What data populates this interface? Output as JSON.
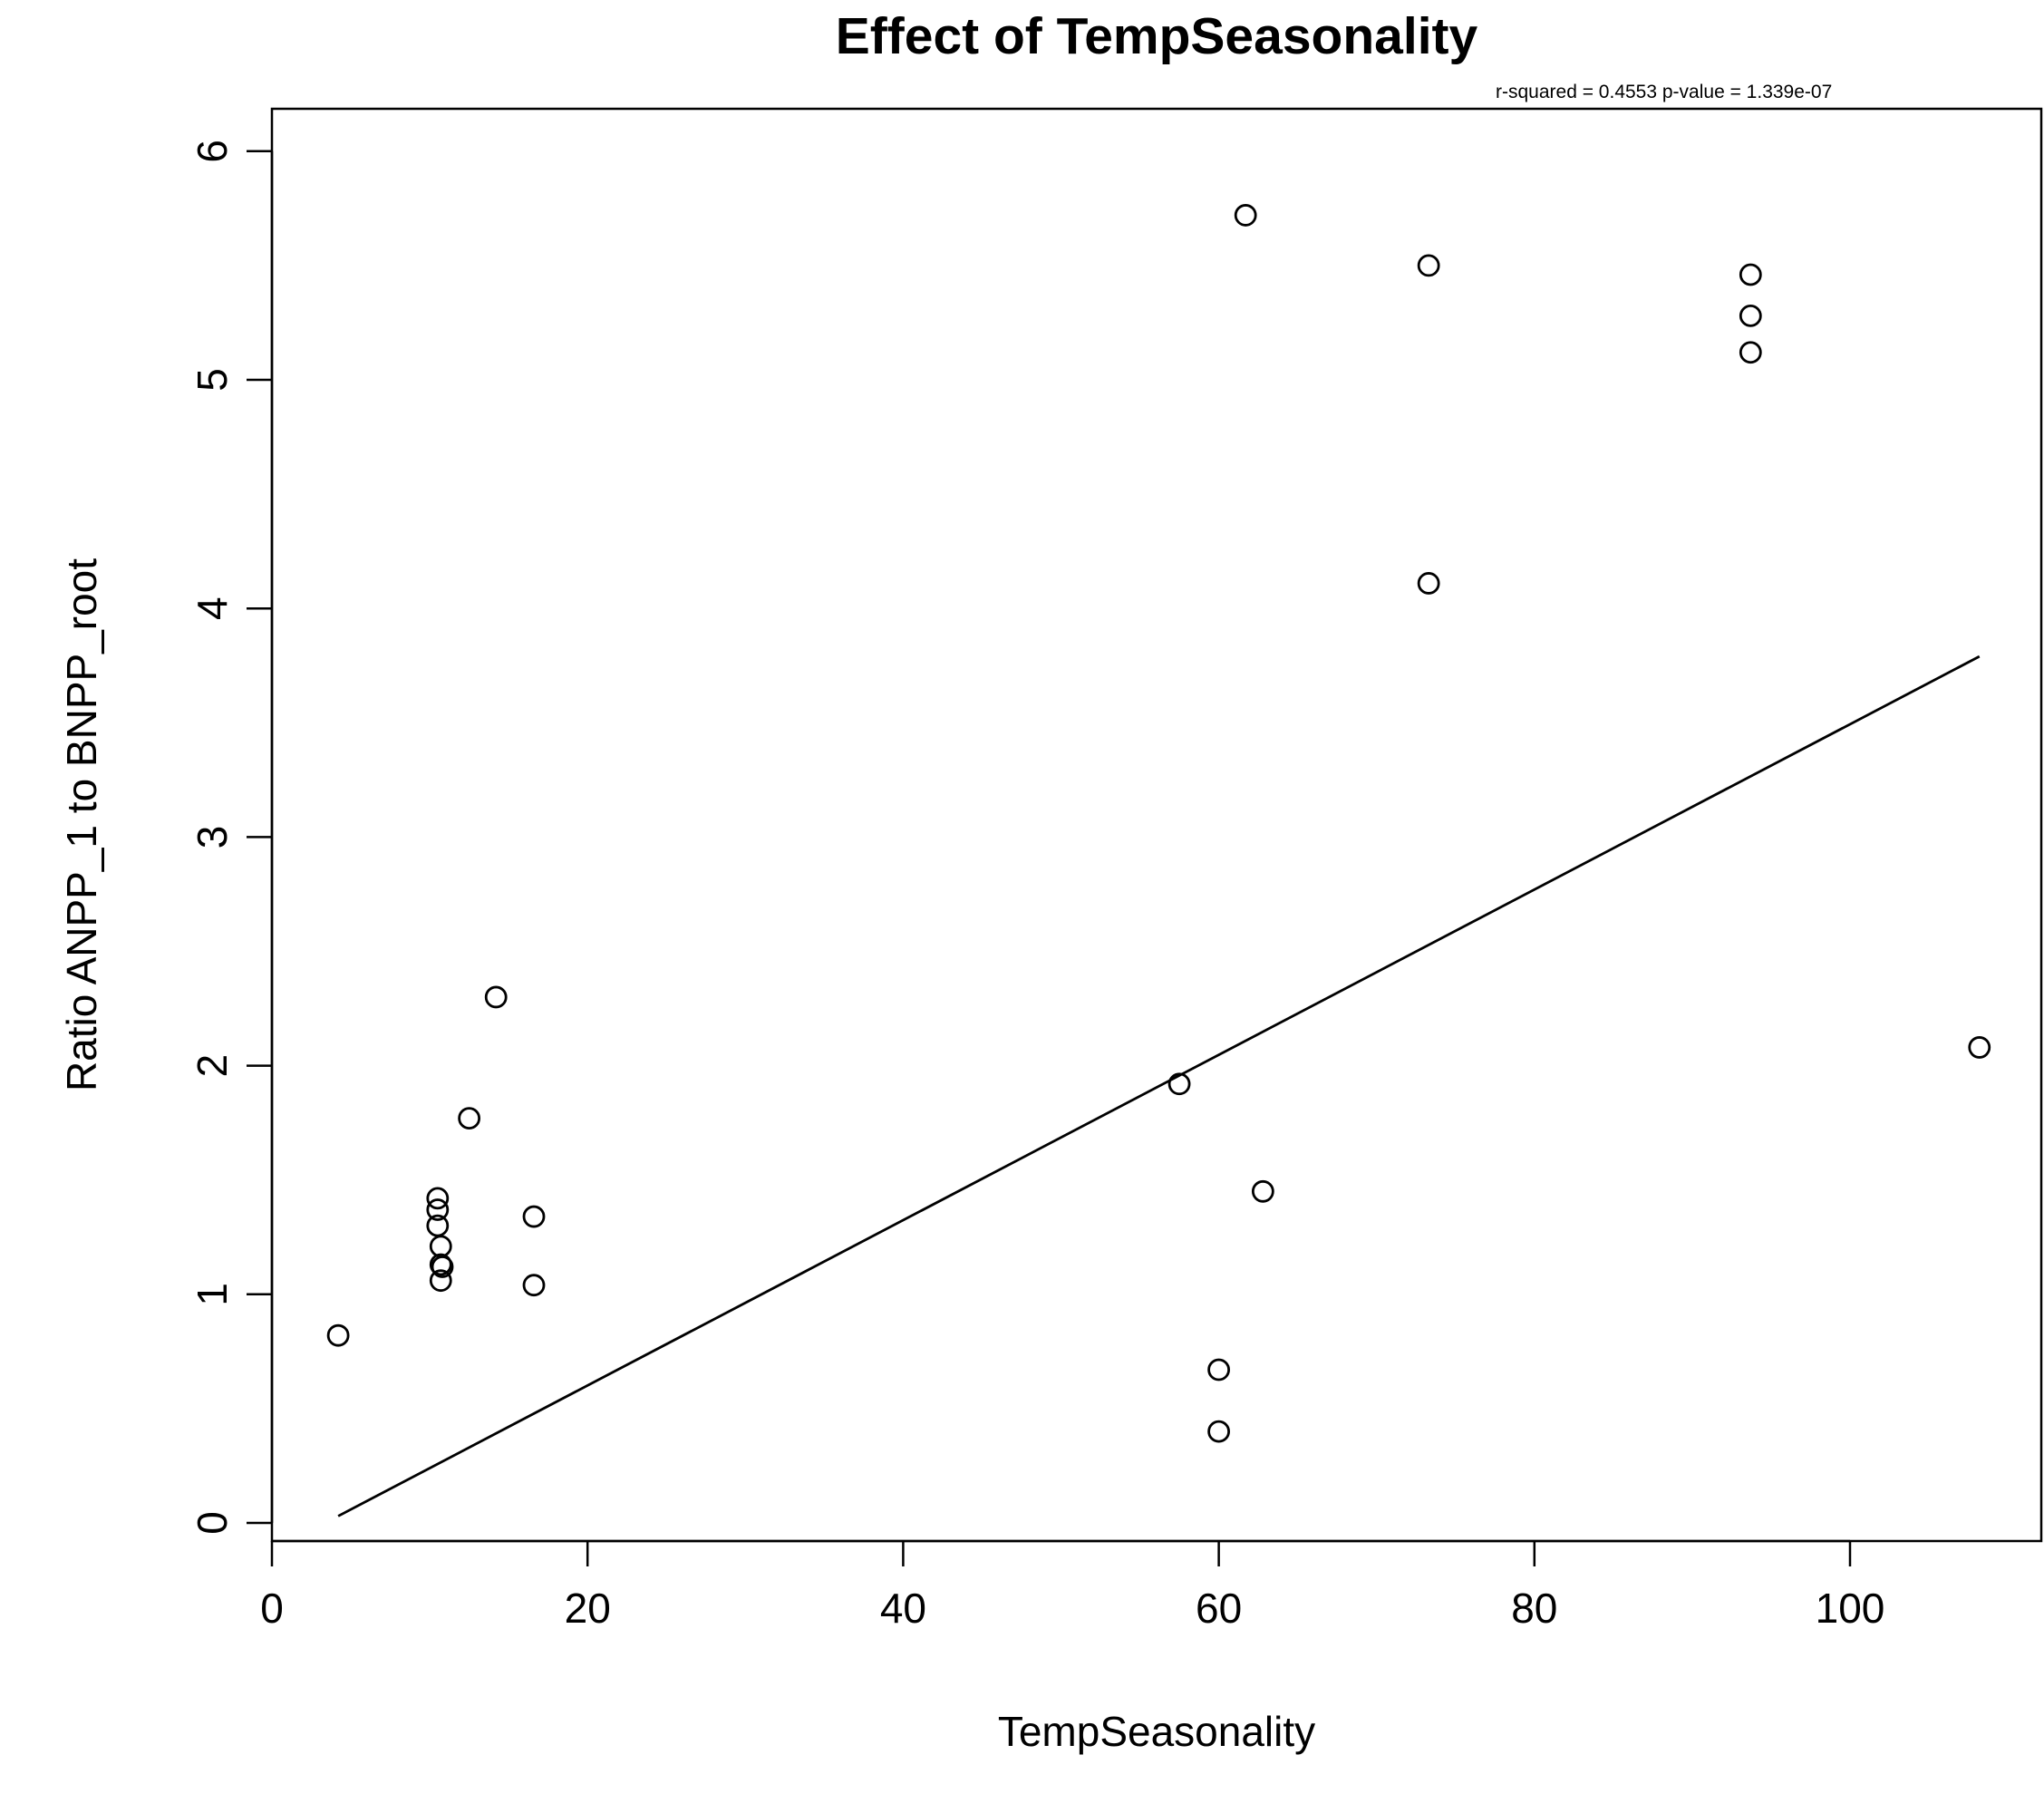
{
  "chart_data": {
    "type": "scatter",
    "title": "Effect of TempSeasonality",
    "stats_text": "r-squared =  0.4553 p-value =  1.339e-07",
    "xlabel": "TempSeasonality",
    "ylabel": "Ratio ANPP_1 to BNPP_root",
    "xlim": [
      0,
      112
    ],
    "ylim": [
      -0.08,
      6.2
    ],
    "x_ticks": [
      0,
      20,
      40,
      60,
      80,
      100
    ],
    "y_ticks": [
      0,
      1,
      2,
      3,
      4,
      5,
      6
    ],
    "grid": false,
    "points": [
      {
        "x": 4.2,
        "y": 0.82
      },
      {
        "x": 10.5,
        "y": 1.42
      },
      {
        "x": 10.5,
        "y": 1.37
      },
      {
        "x": 10.5,
        "y": 1.3
      },
      {
        "x": 10.7,
        "y": 1.21
      },
      {
        "x": 10.7,
        "y": 1.13
      },
      {
        "x": 10.8,
        "y": 1.12
      },
      {
        "x": 10.7,
        "y": 1.06
      },
      {
        "x": 12.5,
        "y": 1.77
      },
      {
        "x": 14.2,
        "y": 2.3
      },
      {
        "x": 16.6,
        "y": 1.34
      },
      {
        "x": 16.6,
        "y": 1.04
      },
      {
        "x": 57.5,
        "y": 1.92
      },
      {
        "x": 60.0,
        "y": 0.67
      },
      {
        "x": 60.0,
        "y": 0.4
      },
      {
        "x": 61.7,
        "y": 5.72
      },
      {
        "x": 62.8,
        "y": 1.45
      },
      {
        "x": 73.3,
        "y": 5.5
      },
      {
        "x": 73.3,
        "y": 4.11
      },
      {
        "x": 93.7,
        "y": 5.46
      },
      {
        "x": 93.7,
        "y": 5.28
      },
      {
        "x": 93.7,
        "y": 5.12
      },
      {
        "x": 108.2,
        "y": 2.08
      }
    ],
    "fit_line": {
      "x": [
        4.2,
        108.2
      ],
      "y": [
        0.03,
        3.79
      ]
    }
  }
}
